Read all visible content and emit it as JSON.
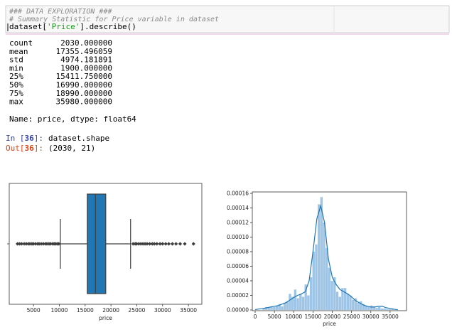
{
  "code_cell": {
    "comment_1": "### DATA EXPLORATION ###",
    "comment_2": "# Summary Statistic for Price variable in dataset",
    "line_3": [
      "dataset[",
      "'Price'",
      "].describe()"
    ]
  },
  "describe_output": {
    "rows": [
      [
        "count",
        "2030.000000"
      ],
      [
        "mean",
        "17355.496059"
      ],
      [
        "std",
        "4974.181891"
      ],
      [
        "min",
        "1900.000000"
      ],
      [
        "25%",
        "15411.750000"
      ],
      [
        "50%",
        "16990.000000"
      ],
      [
        "75%",
        "18990.000000"
      ],
      [
        "max",
        "35980.000000"
      ]
    ],
    "footer": "Name: price, dtype: float64"
  },
  "shape_cell": {
    "in_prompt": [
      "In [",
      "36",
      "]:"
    ],
    "code": "dataset.shape",
    "out_prompt": [
      "Out[",
      "36",
      "]:"
    ],
    "output": "(2030, 21)"
  },
  "chart_data": [
    {
      "type": "box",
      "xlabel": "price",
      "xlim": [
        300,
        37600
      ],
      "xticks": [
        5000,
        10000,
        15000,
        20000,
        25000,
        30000,
        35000
      ],
      "q1": 15411.75,
      "median": 16990,
      "q3": 18990,
      "whisker_low": 10200,
      "whisker_high": 23800,
      "fliers": [
        1900,
        2300,
        2700,
        3200,
        3600,
        4000,
        4300,
        4700,
        5000,
        5400,
        5800,
        6100,
        6500,
        6900,
        7300,
        7600,
        8000,
        8300,
        8700,
        9000,
        9300,
        9600,
        9900,
        24300,
        24700,
        25000,
        25400,
        25800,
        26200,
        26600,
        27000,
        27500,
        28000,
        28400,
        28900,
        29500,
        30000,
        30600,
        31200,
        31900,
        32600,
        33400,
        34300,
        35980
      ],
      "color": "#2077b4"
    },
    {
      "type": "histogram",
      "xlabel": "price",
      "xlim": [
        -740,
        39260
      ],
      "ylim": [
        -1e-06,
        0.000162
      ],
      "xticks": [
        0,
        5000,
        10000,
        15000,
        20000,
        25000,
        30000,
        35000
      ],
      "yticks": [
        {
          "value": 0,
          "label": "0.00000"
        },
        2e-05,
        4e-05,
        6e-05,
        8e-05,
        {
          "value": 0.0001,
          "label": "0.00010"
        },
        0.00012,
        0.00014,
        0.00016
      ],
      "bins": [
        1900,
        2581.6,
        3263.2,
        3944.8,
        4626.4,
        5308,
        5989.6,
        6671.2,
        7352.8,
        8034.4,
        8716,
        9397.6,
        10079.2,
        10760.8,
        11442.4,
        12124,
        12805.6,
        13487.2,
        14168.8,
        14850.4,
        15532,
        16213.6,
        16895.2,
        17576.8,
        18258.4,
        18940,
        19621.6,
        20303.2,
        20984.8,
        21666.4,
        22348,
        23029.6,
        23711.2,
        24392.8,
        25074.4,
        25756,
        26437.6,
        27119.2,
        27800.8,
        28482.4,
        29164,
        29845.6,
        30527.2,
        31208.8,
        31890.4,
        32572,
        33253.6,
        33935.2,
        34616.8,
        35298.4,
        35980
      ],
      "values": [
        2e-06,
        4e-06,
        3e-06,
        5e-06,
        4e-06,
        6e-06,
        8e-06,
        5e-06,
        1e-05,
        1.2e-05,
        2.2e-05,
        1.8e-05,
        2.8e-05,
        1.6e-05,
        2.2e-05,
        1.8e-05,
        3.5e-05,
        2e-05,
        4.5e-05,
        8e-05,
        9e-05,
        0.000145,
        0.000155,
        0.00012,
        8.5e-05,
        5.8e-05,
        4e-05,
        4.5e-05,
        2.5e-05,
        1.8e-05,
        3e-05,
        3e-05,
        2.2e-05,
        2e-05,
        1.4e-05,
        1.6e-05,
        1e-05,
        1.2e-05,
        8e-06,
        6e-06,
        4e-06,
        6e-06,
        5e-06,
        3e-06,
        4e-06,
        2e-06,
        2e-06,
        1e-06,
        1e-06,
        2e-06
      ],
      "color": "#9fc5e6",
      "kde": {
        "x": [
          0,
          2000,
          4000,
          6000,
          8000,
          10000,
          11000,
          12000,
          13000,
          14000,
          15000,
          16000,
          17000,
          18000,
          19000,
          20000,
          21000,
          22000,
          23000,
          24000,
          25000,
          26000,
          27000,
          28000,
          29000,
          30000,
          31000,
          32000,
          33000,
          34000,
          35000,
          36000,
          37000
        ],
        "values": [
          5e-07,
          2e-06,
          4e-06,
          6e-06,
          1e-05,
          1.7e-05,
          2e-05,
          2.2e-05,
          2.5e-05,
          4e-05,
          8e-05,
          0.000125,
          0.000143,
          0.00012,
          7e-05,
          4.5e-05,
          3.5e-05,
          2.8e-05,
          2.5e-05,
          2.2e-05,
          1.8e-05,
          1.3e-05,
          1e-05,
          7e-06,
          5e-06,
          4e-06,
          4e-06,
          5e-06,
          5e-06,
          3e-06,
          2e-06,
          1e-06,
          3e-07
        ],
        "color": "#1f77b4"
      }
    }
  ]
}
